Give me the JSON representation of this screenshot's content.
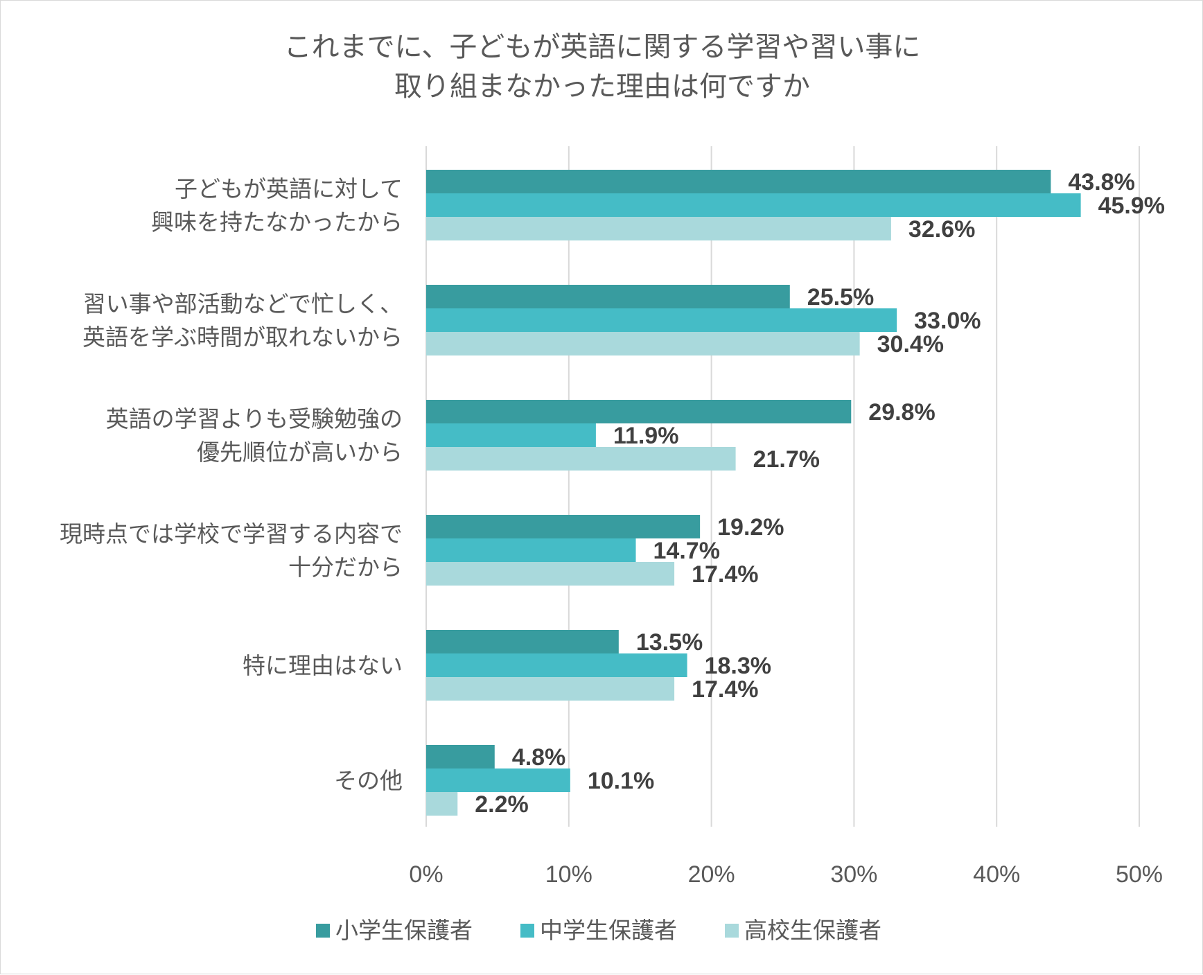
{
  "chart_data": {
    "type": "bar",
    "orientation": "horizontal",
    "title": [
      "これまでに、子どもが英語に関する学習や習い事に",
      "取り組まなかった理由は何ですか"
    ],
    "categories": [
      [
        "子どもが英語に対して",
        "興味を持たなかったから"
      ],
      [
        "習い事や部活動などで忙しく、",
        "英語を学ぶ時間が取れないから"
      ],
      [
        "英語の学習よりも受験勉強の",
        "優先順位が高いから"
      ],
      [
        "現時点では学校で学習する内容で",
        "十分だから"
      ],
      [
        "特に理由はない"
      ],
      [
        "その他"
      ]
    ],
    "series": [
      {
        "name": "小学生保護者",
        "color": "#389c9f",
        "values": [
          43.8,
          25.5,
          29.8,
          19.2,
          13.5,
          4.8
        ]
      },
      {
        "name": "中学生保護者",
        "color": "#45bcc6",
        "values": [
          45.9,
          33.0,
          11.9,
          14.7,
          18.3,
          10.1
        ]
      },
      {
        "name": "高校生保護者",
        "color": "#a9d9dc",
        "values": [
          32.6,
          30.4,
          21.7,
          17.4,
          17.4,
          2.2
        ]
      }
    ],
    "xlim": [
      0,
      50
    ],
    "xticks": [
      0,
      10,
      20,
      30,
      40,
      50
    ],
    "xtick_labels": [
      "0%",
      "10%",
      "20%",
      "30%",
      "40%",
      "50%"
    ],
    "value_suffix": "%",
    "grid": true,
    "legend_position": "bottom"
  }
}
